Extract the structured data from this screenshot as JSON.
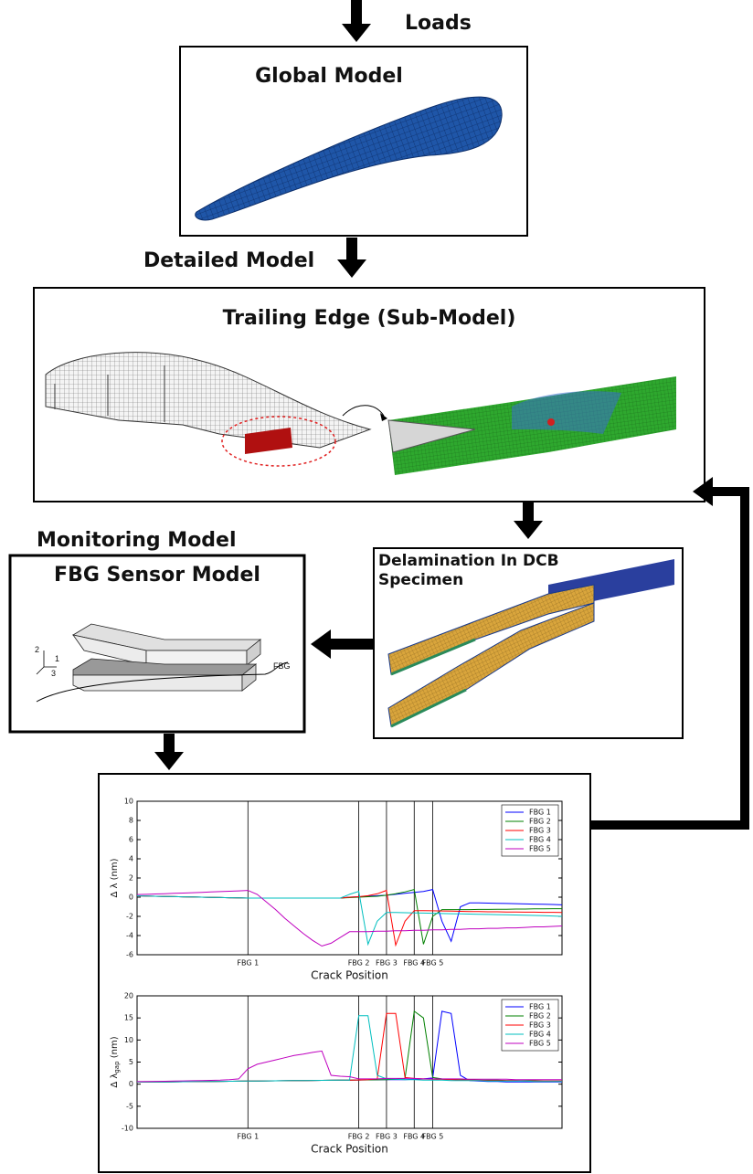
{
  "diagram": {
    "loads": "Loads",
    "global_model": "Global Model",
    "detailed_model": "Detailed Model",
    "sub_model": "Trailing Edge (Sub-Model)",
    "monitoring_model": "Monitoring Model",
    "sensor_model": "FBG Sensor Model",
    "sensor_axes": [
      "2",
      "1",
      "3"
    ],
    "sensor_fiber": "FBG",
    "delamination": "Delamination In DCB Specimen"
  },
  "chart_data": [
    {
      "type": "line",
      "ylabel": "Δ λ (nm)",
      "xlabel": "Crack Position",
      "ylim": [
        -6,
        10
      ],
      "yticks": [
        -6,
        -4,
        -2,
        0,
        2,
        4,
        6,
        8,
        10
      ],
      "legend": "upper right",
      "categories": [
        null,
        null,
        null,
        null,
        null,
        null,
        null,
        null,
        null,
        null,
        null,
        null,
        "FBG 1",
        null,
        null,
        null,
        null,
        null,
        null,
        null,
        null,
        null,
        null,
        null,
        "FBG 2",
        null,
        null,
        "FBG 3",
        null,
        null,
        "FBG 4",
        null,
        "FBG 5",
        null,
        null,
        null,
        null,
        null,
        null,
        null,
        null,
        null,
        null,
        null,
        null,
        null,
        null
      ],
      "series": [
        {
          "name": "FBG 1",
          "color": "#0000ff",
          "values": [
            0.14,
            0.12,
            0.1,
            0.08,
            0.06,
            0.04,
            0.02,
            0,
            -0.02,
            -0.04,
            -0.06,
            -0.08,
            -0.1,
            -0.1,
            -0.1,
            -0.1,
            -0.1,
            -0.1,
            -0.1,
            -0.1,
            -0.1,
            -0.1,
            -0.1,
            0,
            0.05,
            0.1,
            0.15,
            0.2,
            0.3,
            0.4,
            0.5,
            0.6,
            0.8,
            -2.5,
            -4.6,
            -1.0,
            -0.6,
            -0.6,
            -0.62,
            -0.64,
            -0.66,
            -0.68,
            -0.7,
            -0.72,
            -0.74,
            -0.76,
            -0.8
          ]
        },
        {
          "name": "FBG 2",
          "color": "#008000",
          "values": [
            0.14,
            0.12,
            0.1,
            0.08,
            0.06,
            0.04,
            0.02,
            0,
            -0.02,
            -0.04,
            -0.06,
            -0.08,
            -0.1,
            -0.1,
            -0.1,
            -0.1,
            -0.1,
            -0.1,
            -0.1,
            -0.1,
            -0.1,
            -0.1,
            -0.1,
            -0.05,
            0,
            0.05,
            0.1,
            0.2,
            0.35,
            0.55,
            0.8,
            -4.9,
            -2.0,
            -1.3,
            -1.3,
            -1.3,
            -1.3,
            -1.28,
            -1.28,
            -1.26,
            -1.26,
            -1.24,
            -1.24,
            -1.22,
            -1.22,
            -1.2,
            -1.2
          ]
        },
        {
          "name": "FBG 3",
          "color": "#ff0000",
          "values": [
            0.14,
            0.12,
            0.1,
            0.08,
            0.06,
            0.04,
            0.02,
            0,
            -0.02,
            -0.04,
            -0.06,
            -0.08,
            -0.1,
            -0.1,
            -0.1,
            -0.1,
            -0.1,
            -0.1,
            -0.1,
            -0.1,
            -0.1,
            -0.1,
            -0.1,
            0,
            0.05,
            0.15,
            0.35,
            0.7,
            -5.0,
            -2.5,
            -1.4,
            -1.4,
            -1.42,
            -1.44,
            -1.46,
            -1.48,
            -1.5,
            -1.5,
            -1.52,
            -1.52,
            -1.54,
            -1.54,
            -1.56,
            -1.56,
            -1.58,
            -1.58,
            -1.6
          ]
        },
        {
          "name": "FBG 4",
          "color": "#00bfbf",
          "values": [
            0.14,
            0.12,
            0.1,
            0.08,
            0.06,
            0.04,
            0.02,
            0,
            -0.02,
            -0.04,
            -0.06,
            -0.08,
            -0.1,
            -0.1,
            -0.1,
            -0.1,
            -0.1,
            -0.1,
            -0.1,
            -0.1,
            -0.1,
            -0.1,
            -0.1,
            0.3,
            0.6,
            -4.9,
            -2.5,
            -1.6,
            -1.6,
            -1.62,
            -1.64,
            -1.66,
            -1.68,
            -1.7,
            -1.72,
            -1.74,
            -1.76,
            -1.78,
            -1.8,
            -1.82,
            -1.84,
            -1.86,
            -1.88,
            -1.9,
            -1.92,
            -1.96,
            -2.0
          ]
        },
        {
          "name": "FBG 5",
          "color": "#bf00bf",
          "values": [
            0.28,
            0.3,
            0.33,
            0.36,
            0.4,
            0.43,
            0.47,
            0.5,
            0.54,
            0.58,
            0.62,
            0.66,
            0.7,
            0.3,
            -0.5,
            -1.3,
            -2.2,
            -3.0,
            -3.8,
            -4.5,
            -5.1,
            -4.8,
            -4.2,
            -3.6,
            -3.6,
            -3.6,
            -3.55,
            -3.55,
            -3.5,
            -3.5,
            -3.45,
            -3.45,
            -3.4,
            -3.4,
            -3.35,
            -3.35,
            -3.3,
            -3.3,
            -3.25,
            -3.25,
            -3.2,
            -3.2,
            -3.15,
            -3.1,
            -3.1,
            -3.05,
            -3.0
          ]
        }
      ]
    },
    {
      "type": "line",
      "ylabel": "Δ λ",
      "ylabel_subscript": "gap",
      "ylabel_unit": "(nm)",
      "xlabel": "Crack Position",
      "ylim": [
        -10,
        20
      ],
      "yticks": [
        -10,
        -5,
        0,
        5,
        10,
        15,
        20
      ],
      "legend": "upper right",
      "categories": [
        null,
        null,
        null,
        null,
        null,
        null,
        null,
        null,
        null,
        null,
        null,
        null,
        "FBG 1",
        null,
        null,
        null,
        null,
        null,
        null,
        null,
        null,
        null,
        null,
        null,
        "FBG 2",
        null,
        null,
        "FBG 3",
        null,
        null,
        "FBG 4",
        null,
        "FBG 5",
        null,
        null,
        null,
        null,
        null,
        null,
        null,
        null,
        null,
        null,
        null,
        null,
        null,
        null
      ],
      "series": [
        {
          "name": "FBG 1",
          "color": "#0000ff",
          "values": [
            0.46,
            0.48,
            0.5,
            0.52,
            0.54,
            0.56,
            0.58,
            0.6,
            0.62,
            0.64,
            0.66,
            0.68,
            0.7,
            0.72,
            0.74,
            0.76,
            0.78,
            0.8,
            0.82,
            0.84,
            0.86,
            0.88,
            0.9,
            0.92,
            0.94,
            0.96,
            0.98,
            1.0,
            1.0,
            1.0,
            1.1,
            1.2,
            1.4,
            16.5,
            16,
            2,
            0.8,
            0.7,
            0.6,
            0.6,
            0.5,
            0.5,
            0.5,
            0.5,
            0.5,
            0.5,
            0.5
          ]
        },
        {
          "name": "FBG 2",
          "color": "#008000",
          "values": [
            0.46,
            0.48,
            0.5,
            0.52,
            0.54,
            0.56,
            0.58,
            0.6,
            0.62,
            0.64,
            0.66,
            0.68,
            0.7,
            0.72,
            0.74,
            0.76,
            0.78,
            0.8,
            0.82,
            0.84,
            0.86,
            0.88,
            0.9,
            0.92,
            0.94,
            0.96,
            0.98,
            1.0,
            1.1,
            1.3,
            16.5,
            15,
            1.5,
            1.2,
            1.1,
            1.0,
            1.0,
            0.9,
            0.9,
            0.9,
            0.8,
            0.8,
            0.8,
            0.8,
            0.7,
            0.7,
            0.7
          ]
        },
        {
          "name": "FBG 3",
          "color": "#ff0000",
          "values": [
            0.46,
            0.48,
            0.5,
            0.52,
            0.54,
            0.56,
            0.58,
            0.6,
            0.62,
            0.64,
            0.66,
            0.68,
            0.7,
            0.72,
            0.74,
            0.76,
            0.78,
            0.8,
            0.82,
            0.84,
            0.86,
            0.88,
            0.9,
            0.92,
            0.95,
            1.0,
            1.2,
            16,
            16,
            1.5,
            1.3,
            1.2,
            1.1,
            1.0,
            1.0,
            0.9,
            0.9,
            0.9,
            0.8,
            0.8,
            0.8,
            0.8,
            0.7,
            0.7,
            0.7,
            0.7,
            0.7
          ]
        },
        {
          "name": "FBG 4",
          "color": "#00bfbf",
          "values": [
            0.46,
            0.48,
            0.5,
            0.52,
            0.54,
            0.56,
            0.58,
            0.6,
            0.62,
            0.64,
            0.66,
            0.68,
            0.7,
            0.72,
            0.74,
            0.76,
            0.78,
            0.8,
            0.82,
            0.84,
            0.86,
            0.88,
            0.9,
            0.9,
            15.5,
            15.5,
            2.0,
            1.2,
            1.1,
            1.0,
            1.0,
            0.9,
            0.9,
            0.9,
            0.8,
            0.8,
            0.8,
            0.8,
            0.7,
            0.7,
            0.7,
            0.7,
            0.7,
            0.6,
            0.6,
            0.6,
            0.6
          ]
        },
        {
          "name": "FBG 5",
          "color": "#bf00bf",
          "values": [
            0.58,
            0.6,
            0.63,
            0.66,
            0.7,
            0.74,
            0.78,
            0.82,
            0.86,
            0.9,
            1.0,
            1.2,
            3.5,
            4.5,
            5.0,
            5.5,
            6.0,
            6.5,
            6.8,
            7.2,
            7.5,
            2.0,
            1.8,
            1.7,
            1.2,
            1.2,
            1.2,
            1.3,
            1.3,
            1.3,
            1.3,
            1.2,
            1.2,
            1.2,
            1.2,
            1.2,
            1.1,
            1.1,
            1.1,
            1.1,
            1.1,
            1.0,
            1.0,
            1.0,
            1.0,
            1.0,
            1.0
          ]
        }
      ]
    }
  ]
}
